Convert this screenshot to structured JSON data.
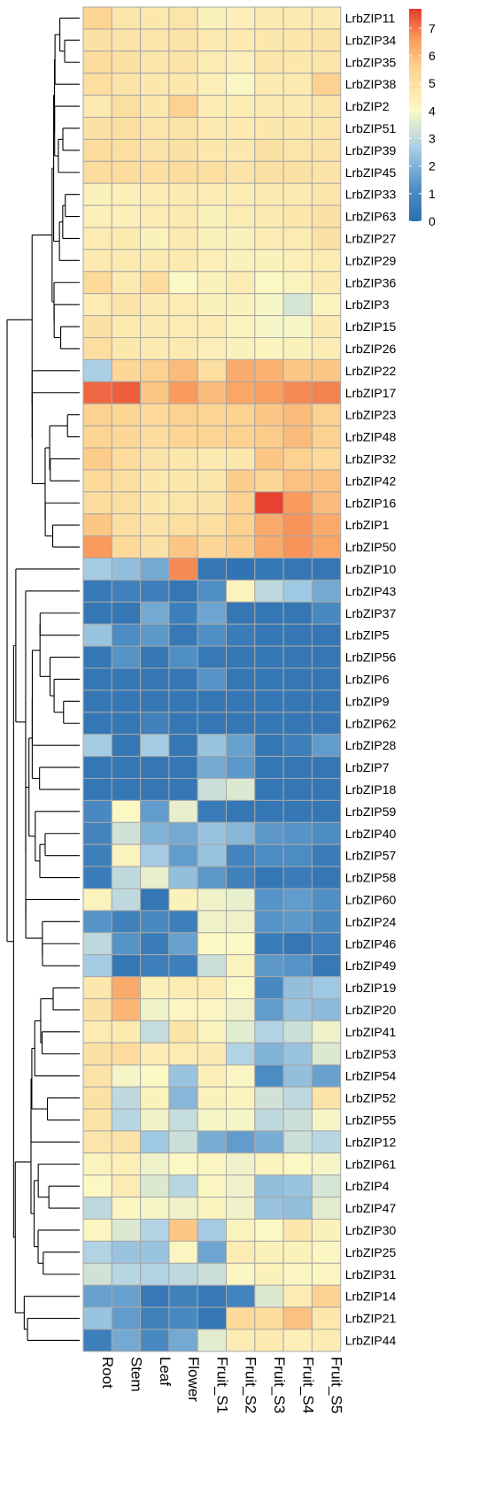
{
  "chart_data": {
    "type": "heatmap",
    "columns": [
      "Root",
      "Stem",
      "Leaf",
      "Flower",
      "Fruit_S1",
      "Fruit_S2",
      "Fruit_S3",
      "Fruit_S4",
      "Fruit_S5"
    ],
    "rows": [
      {
        "name": "LrbZIP11",
        "values": [
          5.5,
          4.8,
          4.7,
          4.8,
          4.3,
          4.4,
          4.6,
          4.6,
          4.6
        ]
      },
      {
        "name": "LrbZIP34",
        "values": [
          5.0,
          4.9,
          4.8,
          4.9,
          4.6,
          4.6,
          4.7,
          4.7,
          4.9
        ]
      },
      {
        "name": "LrbZIP35",
        "values": [
          5.2,
          5.0,
          4.8,
          4.9,
          4.5,
          4.4,
          4.8,
          4.7,
          4.8
        ]
      },
      {
        "name": "LrbZIP38",
        "values": [
          5.1,
          4.9,
          4.7,
          4.7,
          4.4,
          4.1,
          4.6,
          4.6,
          5.6
        ]
      },
      {
        "name": "LrbZIP2",
        "values": [
          4.6,
          5.1,
          4.7,
          5.6,
          4.5,
          4.5,
          4.6,
          4.6,
          4.8
        ]
      },
      {
        "name": "LrbZIP51",
        "values": [
          5.0,
          5.1,
          4.8,
          4.9,
          4.6,
          4.6,
          4.7,
          4.7,
          4.8
        ]
      },
      {
        "name": "LrbZIP39",
        "values": [
          5.2,
          5.1,
          4.9,
          5.0,
          4.7,
          4.7,
          5.0,
          4.8,
          4.9
        ]
      },
      {
        "name": "LrbZIP45",
        "values": [
          5.2,
          5.2,
          5.1,
          5.2,
          5.1,
          4.9,
          5.0,
          5.0,
          4.9
        ]
      },
      {
        "name": "LrbZIP33",
        "values": [
          4.3,
          4.4,
          4.5,
          4.6,
          4.5,
          4.5,
          4.6,
          4.6,
          4.8
        ]
      },
      {
        "name": "LrbZIP63",
        "values": [
          4.4,
          4.4,
          4.5,
          4.6,
          4.3,
          4.5,
          4.6,
          4.7,
          5.0
        ]
      },
      {
        "name": "LrbZIP27",
        "values": [
          4.5,
          4.6,
          4.3,
          4.6,
          4.3,
          4.3,
          4.5,
          4.5,
          5.0
        ]
      },
      {
        "name": "LrbZIP29",
        "values": [
          4.6,
          4.6,
          4.6,
          4.6,
          4.4,
          4.3,
          4.3,
          4.4,
          4.5
        ]
      },
      {
        "name": "LrbZIP36",
        "values": [
          5.3,
          4.6,
          5.2,
          4.0,
          4.3,
          4.5,
          4.0,
          4.2,
          4.6
        ]
      },
      {
        "name": "LrbZIP3",
        "values": [
          4.5,
          4.9,
          4.6,
          4.5,
          4.3,
          4.3,
          3.9,
          3.4,
          4.2
        ]
      },
      {
        "name": "LrbZIP15",
        "values": [
          5.0,
          4.6,
          4.6,
          4.5,
          4.5,
          4.2,
          3.9,
          3.9,
          4.6
        ]
      },
      {
        "name": "LrbZIP26",
        "values": [
          5.1,
          4.7,
          4.6,
          4.6,
          4.4,
          4.3,
          4.2,
          4.3,
          4.5
        ]
      },
      {
        "name": "LrbZIP22",
        "values": [
          2.7,
          5.4,
          5.6,
          6.0,
          5.1,
          6.3,
          6.2,
          5.8,
          5.8
        ]
      },
      {
        "name": "LrbZIP17",
        "values": [
          7.2,
          7.3,
          5.8,
          6.6,
          6.0,
          6.4,
          6.5,
          6.8,
          6.9
        ]
      },
      {
        "name": "LrbZIP23",
        "values": [
          5.6,
          5.5,
          5.3,
          5.6,
          5.5,
          5.6,
          5.8,
          6.0,
          5.6
        ]
      },
      {
        "name": "LrbZIP48",
        "values": [
          5.5,
          5.4,
          5.2,
          5.5,
          5.5,
          5.6,
          5.7,
          6.0,
          5.6
        ]
      },
      {
        "name": "LrbZIP32",
        "values": [
          5.7,
          5.2,
          4.9,
          4.7,
          4.6,
          4.7,
          5.8,
          5.6,
          5.3
        ]
      },
      {
        "name": "LrbZIP42",
        "values": [
          5.3,
          5.1,
          4.7,
          4.7,
          4.7,
          5.7,
          5.4,
          5.9,
          5.9
        ]
      },
      {
        "name": "LrbZIP16",
        "values": [
          5.2,
          5.1,
          4.7,
          4.8,
          4.9,
          5.6,
          7.6,
          6.6,
          6.0
        ]
      },
      {
        "name": "LrbZIP1",
        "values": [
          5.8,
          5.1,
          4.9,
          5.1,
          5.1,
          5.6,
          6.3,
          6.7,
          6.3
        ]
      },
      {
        "name": "LrbZIP50",
        "values": [
          6.6,
          5.3,
          5.0,
          5.8,
          5.4,
          5.7,
          6.3,
          6.7,
          6.4
        ]
      },
      {
        "name": "LrbZIP10",
        "values": [
          2.6,
          2.3,
          1.8,
          6.8,
          0.3,
          0.2,
          0.3,
          0.3,
          0.3
        ]
      },
      {
        "name": "LrbZIP43",
        "values": [
          0.4,
          0.7,
          0.6,
          0.3,
          1.2,
          4.2,
          3.0,
          2.5,
          1.8
        ]
      },
      {
        "name": "LrbZIP37",
        "values": [
          0.3,
          0.3,
          1.8,
          0.6,
          1.7,
          0.3,
          0.3,
          0.3,
          1.0
        ]
      },
      {
        "name": "LrbZIP5",
        "values": [
          2.4,
          1.1,
          1.4,
          0.4,
          1.2,
          0.5,
          0.3,
          0.3,
          0.3
        ]
      },
      {
        "name": "LrbZIP56",
        "values": [
          0.3,
          1.3,
          0.3,
          1.2,
          0.4,
          0.3,
          0.3,
          0.3,
          0.3
        ]
      },
      {
        "name": "LrbZIP6",
        "values": [
          0.3,
          0.3,
          0.3,
          0.3,
          1.3,
          0.3,
          0.3,
          0.3,
          0.3
        ]
      },
      {
        "name": "LrbZIP9",
        "values": [
          0.3,
          0.3,
          0.3,
          0.3,
          0.3,
          0.3,
          0.3,
          0.3,
          0.3
        ]
      },
      {
        "name": "LrbZIP62",
        "values": [
          0.3,
          0.3,
          0.7,
          0.3,
          0.3,
          0.3,
          0.3,
          0.3,
          0.3
        ]
      },
      {
        "name": "LrbZIP28",
        "values": [
          2.6,
          0.3,
          2.6,
          0.3,
          2.4,
          1.6,
          0.3,
          0.6,
          1.5
        ]
      },
      {
        "name": "LrbZIP7",
        "values": [
          0.3,
          0.3,
          0.3,
          0.3,
          1.8,
          1.4,
          0.3,
          0.3,
          0.3
        ]
      },
      {
        "name": "LrbZIP18",
        "values": [
          0.3,
          0.3,
          0.3,
          0.3,
          3.2,
          3.5,
          0.3,
          0.3,
          0.3
        ]
      },
      {
        "name": "LrbZIP59",
        "values": [
          1.0,
          4.0,
          1.5,
          3.7,
          0.5,
          0.3,
          0.3,
          0.3,
          0.3
        ]
      },
      {
        "name": "LrbZIP40",
        "values": [
          0.8,
          3.3,
          2.0,
          1.8,
          2.4,
          2.1,
          1.4,
          1.3,
          1.1
        ]
      },
      {
        "name": "LrbZIP57",
        "values": [
          0.6,
          4.2,
          2.6,
          1.5,
          2.4,
          0.8,
          1.1,
          1.1,
          0.5
        ]
      },
      {
        "name": "LrbZIP58",
        "values": [
          0.5,
          3.0,
          3.7,
          2.3,
          1.4,
          0.7,
          0.3,
          0.5,
          0.3
        ]
      },
      {
        "name": "LrbZIP60",
        "values": [
          4.2,
          3.0,
          0.3,
          4.3,
          3.8,
          3.7,
          1.3,
          1.5,
          1.2
        ]
      },
      {
        "name": "LrbZIP24",
        "values": [
          1.3,
          0.7,
          1.0,
          0.6,
          3.8,
          3.8,
          1.3,
          1.4,
          1.0
        ]
      },
      {
        "name": "LrbZIP46",
        "values": [
          3.0,
          1.3,
          0.5,
          1.6,
          4.0,
          4.0,
          0.5,
          0.3,
          0.6
        ]
      },
      {
        "name": "LrbZIP49",
        "values": [
          2.6,
          0.3,
          0.6,
          0.6,
          3.2,
          4.2,
          1.4,
          1.3,
          0.4
        ]
      },
      {
        "name": "LrbZIP19",
        "values": [
          4.7,
          6.3,
          4.4,
          4.5,
          4.5,
          4.0,
          1.0,
          2.3,
          2.5
        ]
      },
      {
        "name": "LrbZIP20",
        "values": [
          5.0,
          6.1,
          3.8,
          4.1,
          4.1,
          3.8,
          1.5,
          2.4,
          2.2
        ]
      },
      {
        "name": "LrbZIP41",
        "values": [
          4.5,
          4.6,
          3.1,
          4.9,
          4.2,
          3.6,
          2.8,
          3.2,
          3.8
        ]
      },
      {
        "name": "LrbZIP53",
        "values": [
          5.0,
          5.2,
          4.5,
          4.5,
          4.6,
          2.8,
          2.0,
          2.4,
          3.5
        ]
      },
      {
        "name": "LrbZIP54",
        "values": [
          4.9,
          3.9,
          4.0,
          2.4,
          4.4,
          4.1,
          1.1,
          2.3,
          1.6
        ]
      },
      {
        "name": "LrbZIP52",
        "values": [
          5.0,
          3.0,
          4.3,
          2.1,
          4.3,
          4.2,
          3.3,
          3.0,
          4.9
        ]
      },
      {
        "name": "LrbZIP55",
        "values": [
          4.9,
          2.9,
          3.8,
          3.1,
          3.9,
          3.9,
          3.0,
          3.2,
          3.9
        ]
      },
      {
        "name": "LrbZIP12",
        "values": [
          4.8,
          4.9,
          2.5,
          3.2,
          1.9,
          1.5,
          1.9,
          3.2,
          2.9
        ]
      },
      {
        "name": "LrbZIP61",
        "values": [
          4.2,
          4.4,
          3.8,
          4.0,
          4.1,
          3.8,
          4.2,
          4.0,
          3.9
        ]
      },
      {
        "name": "LrbZIP4",
        "values": [
          4.0,
          4.5,
          3.5,
          2.9,
          4.1,
          3.8,
          2.3,
          2.4,
          3.4
        ]
      },
      {
        "name": "LrbZIP47",
        "values": [
          3.0,
          4.1,
          3.9,
          3.8,
          4.2,
          3.8,
          2.4,
          2.3,
          3.6
        ]
      },
      {
        "name": "LrbZIP30",
        "values": [
          4.1,
          3.5,
          2.8,
          5.8,
          2.6,
          4.2,
          4.0,
          4.7,
          4.3
        ]
      },
      {
        "name": "LrbZIP25",
        "values": [
          2.8,
          2.4,
          2.4,
          4.1,
          1.7,
          4.5,
          4.3,
          4.3,
          4.1
        ]
      },
      {
        "name": "LrbZIP31",
        "values": [
          3.3,
          2.9,
          2.8,
          3.0,
          3.2,
          4.1,
          4.3,
          4.1,
          4.1
        ]
      },
      {
        "name": "LrbZIP14",
        "values": [
          1.6,
          1.6,
          0.4,
          0.7,
          0.4,
          0.8,
          3.5,
          4.5,
          5.6
        ]
      },
      {
        "name": "LrbZIP21",
        "values": [
          2.4,
          1.5,
          0.7,
          1.0,
          0.3,
          5.3,
          5.2,
          5.9,
          4.7
        ]
      },
      {
        "name": "LrbZIP44",
        "values": [
          0.6,
          1.8,
          1.0,
          1.8,
          3.6,
          4.5,
          4.6,
          4.4,
          4.5
        ]
      }
    ],
    "legend": {
      "ticks": [
        0,
        1,
        2,
        3,
        4,
        5,
        6,
        7
      ],
      "min": 0,
      "max": 7.7,
      "placement": "top-right"
    },
    "dendrogram": "rows",
    "colors": {
      "low": "#2c6fb0",
      "mid": "#fbf8c4",
      "high": "#e53a2c",
      "cell_border": "#a7a7a7",
      "line": "#000000"
    }
  }
}
